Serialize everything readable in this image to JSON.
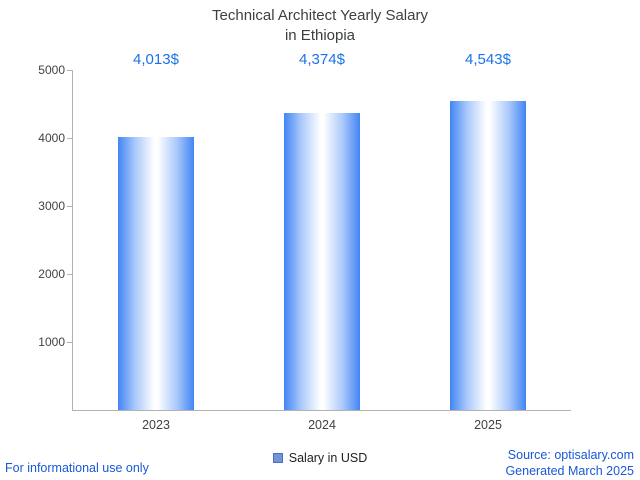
{
  "title": {
    "line1": "Technical Architect Yearly Salary",
    "line2": "in Ethiopia"
  },
  "chart_data": {
    "type": "bar",
    "title": "Technical Architect Yearly Salary in Ethiopia",
    "categories": [
      "2023",
      "2024",
      "2025"
    ],
    "series": [
      {
        "name": "Salary in USD",
        "values": [
          4013,
          4374,
          4543
        ]
      }
    ],
    "value_labels": [
      "4,013$",
      "4,374$",
      "4,543$"
    ],
    "xlabel": "",
    "ylabel": "",
    "ylim": [
      0,
      5000
    ],
    "yticks": [
      1000,
      2000,
      3000,
      4000,
      5000
    ],
    "grid": false,
    "legend_position": "bottom",
    "colors": {
      "bar_edge": "#4285f4",
      "bar_mid": "#a8c7fa",
      "bar_center": "#ffffff",
      "value_label": "#1a73e8",
      "axis": "#b3b3b3",
      "tick_text": "#424242"
    }
  },
  "legend": {
    "label": "Salary in USD",
    "swatch_color": "#7096d8",
    "swatch_border": "#4d6fb3"
  },
  "footer": {
    "disclaimer": "For informational use only",
    "source": "Source: optisalary.com",
    "generated": "Generated March 2025",
    "link_color": "#1a58d8"
  }
}
